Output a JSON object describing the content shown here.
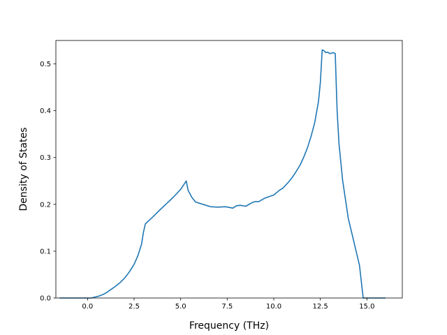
{
  "chart_data": {
    "type": "line",
    "title": "",
    "xlabel": "Frequency (THz)",
    "ylabel": "Density of States",
    "xlim": [
      -1.7,
      16.9
    ],
    "ylim": [
      0.0,
      0.55
    ],
    "grid": false,
    "legend": "none",
    "line_color": "#1f77b4",
    "x_ticks": [
      0.0,
      2.5,
      5.0,
      7.5,
      10.0,
      12.5,
      15.0
    ],
    "x_tick_labels": [
      "0.0",
      "2.5",
      "5.0",
      "7.5",
      "10.0",
      "12.5",
      "15.0"
    ],
    "y_ticks": [
      0.0,
      0.1,
      0.2,
      0.3,
      0.4,
      0.5
    ],
    "y_tick_labels": [
      "0.0",
      "0.1",
      "0.2",
      "0.3",
      "0.4",
      "0.5"
    ],
    "series": [
      {
        "x": [
          -1.5,
          -0.5,
          0.0,
          0.2,
          0.4,
          0.6,
          0.8,
          1.0,
          1.25,
          1.5,
          1.75,
          2.0,
          2.25,
          2.5,
          2.7,
          2.9,
          3.0,
          3.1,
          3.2,
          3.5,
          3.8,
          4.2,
          4.6,
          5.0,
          5.3,
          5.4,
          5.6,
          5.8,
          6.2,
          6.6,
          7.0,
          7.4,
          7.8,
          8.0,
          8.2,
          8.5,
          8.8,
          9.0,
          9.2,
          9.5,
          9.7,
          10.0,
          10.3,
          10.5,
          10.8,
          11.0,
          11.2,
          11.4,
          11.6,
          11.8,
          12.0,
          12.2,
          12.4,
          12.5,
          12.6,
          12.7,
          12.8,
          12.9,
          13.0,
          13.1,
          13.2,
          13.3,
          13.4,
          13.5,
          13.7,
          14.0,
          14.3,
          14.6,
          14.8,
          15.0,
          16.0
        ],
        "y": [
          0.0,
          0.0,
          0.0,
          0.0,
          0.002,
          0.004,
          0.007,
          0.011,
          0.018,
          0.025,
          0.033,
          0.043,
          0.056,
          0.072,
          0.09,
          0.115,
          0.14,
          0.158,
          0.162,
          0.173,
          0.185,
          0.2,
          0.215,
          0.232,
          0.25,
          0.23,
          0.215,
          0.205,
          0.2,
          0.195,
          0.194,
          0.195,
          0.192,
          0.197,
          0.198,
          0.196,
          0.203,
          0.206,
          0.206,
          0.213,
          0.216,
          0.22,
          0.23,
          0.235,
          0.248,
          0.258,
          0.27,
          0.283,
          0.3,
          0.32,
          0.345,
          0.375,
          0.42,
          0.46,
          0.53,
          0.528,
          0.524,
          0.525,
          0.522,
          0.523,
          0.524,
          0.522,
          0.4,
          0.33,
          0.25,
          0.17,
          0.12,
          0.07,
          0.0,
          0.0,
          0.0
        ]
      }
    ]
  }
}
